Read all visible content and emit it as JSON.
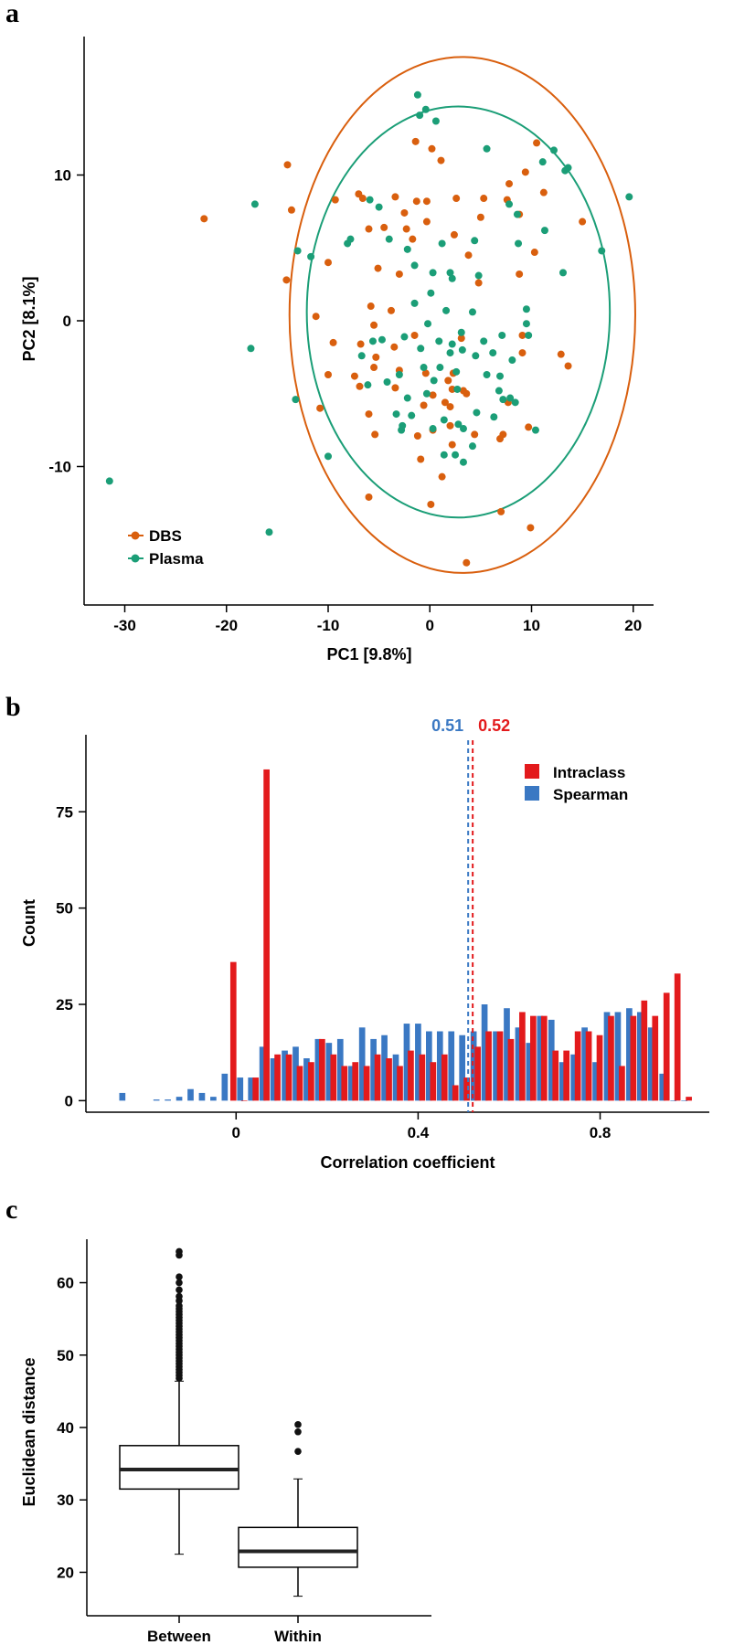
{
  "colors": {
    "dbs": "#D95F0E",
    "plasma": "#1B9E77",
    "intraclass": "#E31A1C",
    "spearman": "#3A78C3",
    "axis": "#000000"
  },
  "chart_data": [
    {
      "panel": "a",
      "type": "scatter",
      "xlabel": "PC1 [9.8%]",
      "ylabel": "PC2 [8.1%]",
      "xlim": [
        -34,
        22
      ],
      "ylim": [
        -19.5,
        19.5
      ],
      "xticks": [
        -30,
        -20,
        -10,
        0,
        10,
        20
      ],
      "yticks": [
        -10,
        0,
        10
      ],
      "legend": [
        {
          "name": "DBS",
          "color": "#D95F0E"
        },
        {
          "name": "Plasma",
          "color": "#1B9E77"
        }
      ],
      "ellipses": [
        {
          "series": "DBS",
          "cx": 3.2,
          "cy": 0.4,
          "rx": 17.0,
          "ry": 17.7,
          "color": "#D95F0E"
        },
        {
          "series": "Plasma",
          "cx": 2.8,
          "cy": 0.6,
          "rx": 14.9,
          "ry": 14.1,
          "color": "#1B9E77"
        }
      ],
      "series": [
        {
          "name": "DBS",
          "color": "#D95F0E",
          "points": [
            [
              -22.2,
              7.0
            ],
            [
              -14.0,
              10.7
            ],
            [
              -13.6,
              7.6
            ],
            [
              -14.1,
              2.8
            ],
            [
              -11.2,
              0.3
            ],
            [
              -10.0,
              4.0
            ],
            [
              -10.0,
              -3.7
            ],
            [
              -10.8,
              -6.0
            ],
            [
              -9.5,
              -1.5
            ],
            [
              -9.3,
              8.3
            ],
            [
              -7.0,
              8.7
            ],
            [
              -6.6,
              8.4
            ],
            [
              -6.0,
              6.3
            ],
            [
              -6.8,
              -1.6
            ],
            [
              -6.9,
              -4.5
            ],
            [
              -6.0,
              -6.4
            ],
            [
              -5.5,
              -3.2
            ],
            [
              -5.5,
              -0.3
            ],
            [
              -5.3,
              -2.5
            ],
            [
              -5.8,
              1.0
            ],
            [
              -5.1,
              3.6
            ],
            [
              -4.5,
              6.4
            ],
            [
              -3.8,
              0.7
            ],
            [
              -3.5,
              -1.8
            ],
            [
              -3.4,
              -4.6
            ],
            [
              -5.4,
              -7.8
            ],
            [
              -3.0,
              -3.4
            ],
            [
              -6.0,
              -12.1
            ],
            [
              -3.0,
              3.2
            ],
            [
              -2.5,
              7.4
            ],
            [
              -2.3,
              6.3
            ],
            [
              -1.7,
              5.6
            ],
            [
              -1.4,
              12.3
            ],
            [
              -1.3,
              8.2
            ],
            [
              -1.2,
              -7.9
            ],
            [
              -0.9,
              -9.5
            ],
            [
              -0.6,
              -5.8
            ],
            [
              -0.4,
              -3.6
            ],
            [
              -0.3,
              8.2
            ],
            [
              -0.3,
              6.8
            ],
            [
              0.3,
              -5.1
            ],
            [
              0.1,
              -12.6
            ],
            [
              0.3,
              -7.5
            ],
            [
              1.1,
              11.0
            ],
            [
              1.2,
              -10.7
            ],
            [
              1.5,
              -5.6
            ],
            [
              1.8,
              -4.1
            ],
            [
              2.0,
              -5.9
            ],
            [
              2.0,
              -7.2
            ],
            [
              2.2,
              -4.7
            ],
            [
              2.2,
              -8.5
            ],
            [
              2.3,
              -3.6
            ],
            [
              3.3,
              -4.8
            ],
            [
              3.6,
              -5.0
            ],
            [
              3.6,
              -16.6
            ],
            [
              2.4,
              5.9
            ],
            [
              3.1,
              -1.2
            ],
            [
              3.8,
              4.5
            ],
            [
              4.4,
              -7.8
            ],
            [
              5.0,
              7.1
            ],
            [
              5.3,
              8.4
            ],
            [
              6.9,
              -8.1
            ],
            [
              7.2,
              -7.8
            ],
            [
              7.7,
              -5.6
            ],
            [
              7.8,
              9.4
            ],
            [
              7.6,
              8.3
            ],
            [
              8.8,
              7.3
            ],
            [
              8.8,
              3.2
            ],
            [
              9.1,
              -1.0
            ],
            [
              9.1,
              -2.2
            ],
            [
              9.4,
              10.2
            ],
            [
              9.7,
              -7.3
            ],
            [
              9.9,
              -14.2
            ],
            [
              10.3,
              4.7
            ],
            [
              10.5,
              12.2
            ],
            [
              11.2,
              8.8
            ],
            [
              12.9,
              -2.3
            ],
            [
              13.6,
              -3.1
            ],
            [
              15.0,
              6.8
            ],
            [
              7.0,
              -13.1
            ],
            [
              0.2,
              11.8
            ],
            [
              -1.5,
              -1.0
            ],
            [
              -3.4,
              8.5
            ],
            [
              4.8,
              2.6
            ],
            [
              -7.4,
              -3.8
            ],
            [
              2.6,
              8.4
            ]
          ]
        },
        {
          "name": "Plasma",
          "color": "#1B9E77",
          "points": [
            [
              -31.5,
              -11.0
            ],
            [
              -17.6,
              -1.9
            ],
            [
              -17.2,
              8.0
            ],
            [
              -15.8,
              -14.5
            ],
            [
              -13.2,
              -5.4
            ],
            [
              -13.0,
              4.8
            ],
            [
              -11.7,
              4.4
            ],
            [
              -10.0,
              -9.3
            ],
            [
              -8.1,
              5.3
            ],
            [
              -7.8,
              5.6
            ],
            [
              -6.7,
              -2.4
            ],
            [
              -6.1,
              -4.4
            ],
            [
              -5.9,
              8.3
            ],
            [
              -5.6,
              -1.4
            ],
            [
              -5.0,
              7.8
            ],
            [
              -4.7,
              -1.3
            ],
            [
              -4.2,
              -4.2
            ],
            [
              -3.3,
              -6.4
            ],
            [
              -3.0,
              -3.7
            ],
            [
              -2.8,
              -7.5
            ],
            [
              -2.7,
              -7.2
            ],
            [
              -2.5,
              -1.1
            ],
            [
              -2.2,
              -5.3
            ],
            [
              -1.8,
              -6.5
            ],
            [
              -1.5,
              3.8
            ],
            [
              -1.5,
              1.2
            ],
            [
              -0.9,
              -1.9
            ],
            [
              -0.6,
              -3.2
            ],
            [
              -0.3,
              -5.0
            ],
            [
              -0.2,
              -0.2
            ],
            [
              0.1,
              1.9
            ],
            [
              0.3,
              3.3
            ],
            [
              0.3,
              -7.4
            ],
            [
              0.4,
              -4.1
            ],
            [
              0.9,
              -1.4
            ],
            [
              1.0,
              -3.2
            ],
            [
              1.2,
              5.3
            ],
            [
              1.4,
              -6.8
            ],
            [
              1.4,
              -9.2
            ],
            [
              1.6,
              0.7
            ],
            [
              2.0,
              -2.2
            ],
            [
              2.2,
              2.9
            ],
            [
              2.5,
              -9.2
            ],
            [
              2.6,
              -3.5
            ],
            [
              2.7,
              -4.7
            ],
            [
              2.8,
              -7.1
            ],
            [
              3.1,
              -0.8
            ],
            [
              3.2,
              -2.0
            ],
            [
              3.3,
              -7.4
            ],
            [
              3.3,
              -9.7
            ],
            [
              4.2,
              0.6
            ],
            [
              4.4,
              5.5
            ],
            [
              4.5,
              -2.4
            ],
            [
              4.6,
              -6.3
            ],
            [
              4.8,
              3.1
            ],
            [
              5.3,
              -1.4
            ],
            [
              5.6,
              -3.7
            ],
            [
              6.3,
              -6.6
            ],
            [
              6.8,
              -4.8
            ],
            [
              6.9,
              -3.8
            ],
            [
              7.1,
              -1.0
            ],
            [
              7.2,
              -5.4
            ],
            [
              7.8,
              8.0
            ],
            [
              7.9,
              -5.3
            ],
            [
              8.1,
              -2.7
            ],
            [
              8.4,
              -5.6
            ],
            [
              8.6,
              7.3
            ],
            [
              8.7,
              5.3
            ],
            [
              9.5,
              0.8
            ],
            [
              9.7,
              -1.0
            ],
            [
              10.4,
              -7.5
            ],
            [
              11.3,
              6.2
            ],
            [
              12.2,
              11.7
            ],
            [
              13.1,
              3.3
            ],
            [
              13.6,
              10.5
            ],
            [
              16.9,
              4.8
            ],
            [
              19.6,
              8.5
            ],
            [
              -1.2,
              15.5
            ],
            [
              -1.0,
              14.1
            ],
            [
              -0.4,
              14.5
            ],
            [
              0.6,
              13.7
            ],
            [
              5.6,
              11.8
            ],
            [
              11.1,
              10.9
            ],
            [
              13.3,
              10.3
            ],
            [
              2.0,
              3.3
            ],
            [
              -4.0,
              5.6
            ],
            [
              -2.2,
              4.9
            ],
            [
              9.5,
              -0.2
            ],
            [
              2.2,
              -1.6
            ],
            [
              6.2,
              -2.2
            ],
            [
              4.2,
              -8.6
            ]
          ]
        }
      ]
    },
    {
      "panel": "b",
      "type": "bar",
      "subtype": "histogram",
      "xlabel": "Correlation coefficient",
      "ylabel": "Count",
      "xlim": [
        -0.33,
        1.04
      ],
      "ylim": [
        -3,
        95
      ],
      "xticks": [
        0,
        0.4,
        0.8
      ],
      "yticks": [
        0,
        25,
        50,
        75
      ],
      "bin_width": 0.0244,
      "legend": [
        {
          "name": "Intraclass",
          "color": "#E31A1C"
        },
        {
          "name": "Spearman",
          "color": "#3A78C3"
        }
      ],
      "series": [
        {
          "name": "Spearman",
          "color": "#3A78C3",
          "x": [
            -0.25,
            -0.175,
            -0.15,
            -0.125,
            -0.1,
            -0.075,
            -0.05,
            -0.025,
            0.009,
            0.033,
            0.058,
            0.082,
            0.107,
            0.131,
            0.155,
            0.18,
            0.204,
            0.229,
            0.253,
            0.277,
            0.302,
            0.326,
            0.351,
            0.375,
            0.4,
            0.424,
            0.448,
            0.473,
            0.497,
            0.522,
            0.546,
            0.571,
            0.595,
            0.62,
            0.644,
            0.668,
            0.693,
            0.717,
            0.742,
            0.766,
            0.79,
            0.815,
            0.839,
            0.864,
            0.888,
            0.912,
            0.937,
            0.961,
            0.985
          ],
          "values": [
            2,
            0.3,
            0.3,
            1,
            3,
            2,
            1,
            7,
            6,
            6,
            14,
            11,
            13,
            14,
            11,
            16,
            15,
            16,
            9,
            19,
            16,
            17,
            12,
            20,
            20,
            18,
            18,
            18,
            17,
            18,
            25,
            18,
            24,
            19,
            15,
            22,
            21,
            10,
            12,
            19,
            10,
            23,
            23,
            24,
            23,
            19,
            7,
            0,
            0
          ]
        },
        {
          "name": "Intraclass",
          "color": "#E31A1C",
          "x": [
            -0.006,
            0.018,
            0.043,
            0.067,
            0.091,
            0.116,
            0.14,
            0.165,
            0.189,
            0.214,
            0.238,
            0.262,
            0.287,
            0.311,
            0.336,
            0.36,
            0.384,
            0.409,
            0.433,
            0.458,
            0.482,
            0.507,
            0.531,
            0.555,
            0.58,
            0.604,
            0.629,
            0.653,
            0.677,
            0.702,
            0.726,
            0.751,
            0.775,
            0.799,
            0.824,
            0.848,
            0.873,
            0.897,
            0.921,
            0.946,
            0.97,
            0.995
          ],
          "values": [
            36,
            0,
            6,
            86,
            12,
            12,
            9,
            10,
            16,
            12,
            9,
            10,
            9,
            12,
            11,
            9,
            13,
            12,
            10,
            12,
            4,
            6,
            14,
            18,
            18,
            16,
            23,
            22,
            22,
            13,
            13,
            18,
            18,
            17,
            22,
            9,
            22,
            26,
            22,
            28,
            33,
            1
          ]
        }
      ],
      "vlines": [
        {
          "series": "Spearman",
          "value": 0.51,
          "label": "0.51",
          "color": "#3A78C3"
        },
        {
          "series": "Intraclass",
          "value": 0.52,
          "label": "0.52",
          "color": "#E31A1C"
        }
      ]
    },
    {
      "panel": "c",
      "type": "box",
      "xlabel": "",
      "ylabel": "Euclidean distance",
      "ylim": [
        14,
        66
      ],
      "yticks": [
        20,
        30,
        40,
        50,
        60
      ],
      "categories": [
        "Between",
        "Within"
      ],
      "boxes": [
        {
          "name": "Between",
          "q1": 31.5,
          "median": 34.2,
          "q3": 37.5,
          "whisker_low": 22.5,
          "whisker_high": 46.4,
          "outliers": [
            46.8,
            47.2,
            47.6,
            48.0,
            48.4,
            48.8,
            49.2,
            49.6,
            50.0,
            50.4,
            50.8,
            51.2,
            51.6,
            52.0,
            52.4,
            52.8,
            53.2,
            53.6,
            54.0,
            54.4,
            54.8,
            55.2,
            55.6,
            56.0,
            56.4,
            56.8,
            57.5,
            58.1,
            59.0,
            60.0,
            60.8,
            63.8,
            64.3
          ]
        },
        {
          "name": "Within",
          "q1": 20.7,
          "median": 22.9,
          "q3": 26.2,
          "whisker_low": 16.7,
          "whisker_high": 32.9,
          "outliers": [
            36.7,
            39.4,
            40.4
          ]
        }
      ]
    }
  ]
}
